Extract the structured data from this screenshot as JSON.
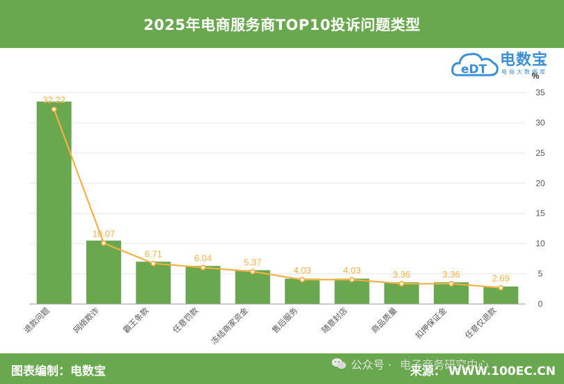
{
  "header": {
    "title": "2025年电商服务商TOP10投诉问题类型"
  },
  "logo": {
    "brand_text": "电数宝",
    "sub_text": "电商大数据库",
    "mark_text": "eDT"
  },
  "footer": {
    "credit": "图表编制：电数宝",
    "wechat_label": "公众号 ·",
    "wechat_account": "电子商务研究中心",
    "source_label": "来源：",
    "source_value": "WWW.100EC.CN"
  },
  "colors": {
    "bar": "#6aa84f",
    "line": "#f5b041",
    "axis_text": "#555555",
    "grid": "#e6e6e6",
    "brand_blue": "#3b8fd6"
  },
  "chart_data": {
    "type": "bar",
    "categories": [
      "退款问题",
      "网络欺诈",
      "霸王条款",
      "任意罚款",
      "冻结商家资金",
      "售后服务",
      "随意封店",
      "商品质量",
      "扣押保证金",
      "任意仅退款"
    ],
    "series": [
      {
        "type": "bar",
        "values": [
          33.5,
          10.5,
          7.0,
          6.3,
          5.6,
          4.2,
          4.2,
          3.6,
          3.6,
          2.9
        ]
      },
      {
        "type": "line",
        "values": [
          32.22,
          10.07,
          6.71,
          6.04,
          5.37,
          4.03,
          4.03,
          3.36,
          3.36,
          2.69
        ],
        "data_labels": [
          "32.22",
          "10.07",
          "6.71",
          "6.04",
          "5.37",
          "4.03",
          "4.03",
          "3.36",
          "3.36",
          "2.69"
        ]
      }
    ],
    "y_axis": {
      "position": "right",
      "unit": "%",
      "min": 0,
      "max": 35,
      "ticks": [
        0,
        5,
        10,
        15,
        20,
        25,
        30,
        35
      ]
    },
    "grid": true
  }
}
